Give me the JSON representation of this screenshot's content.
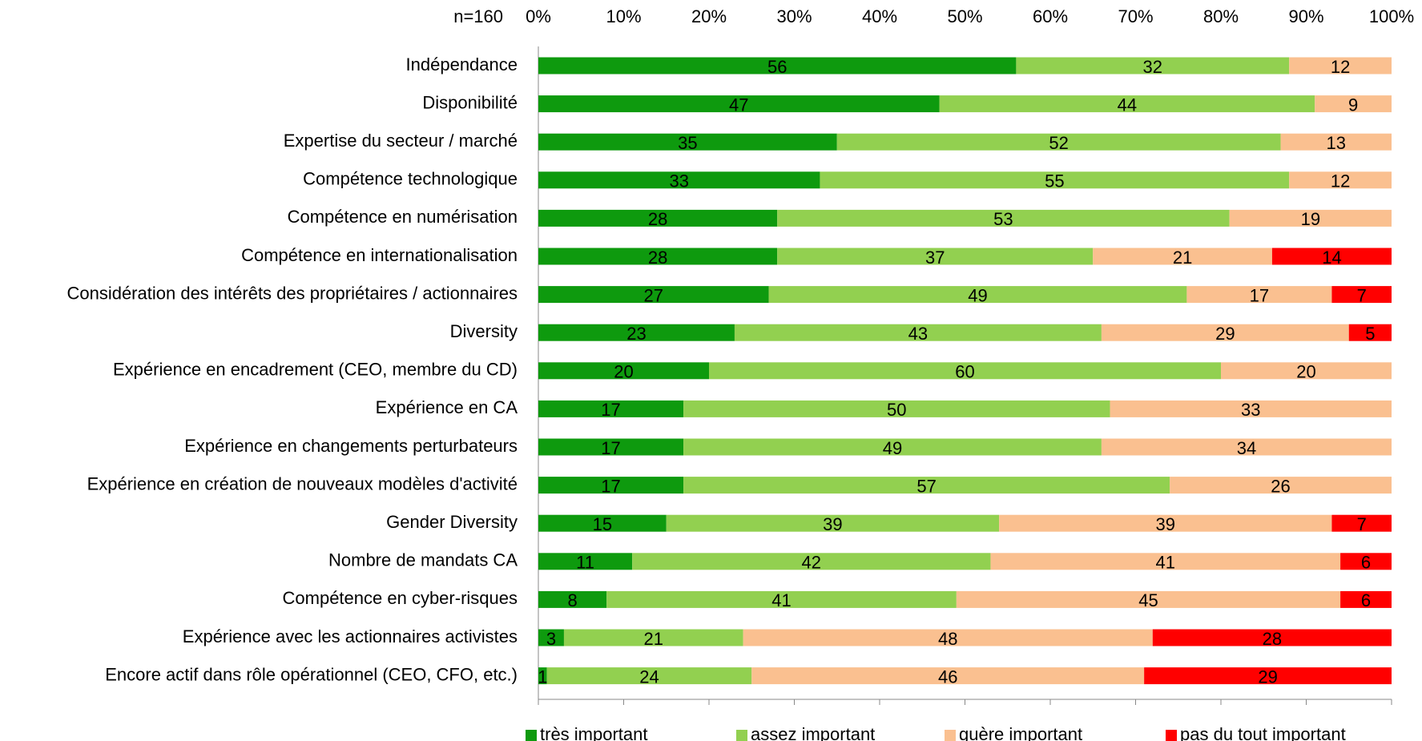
{
  "chart_data": {
    "type": "stacked_bar_horizontal",
    "note": "n=160",
    "categories": [
      "Indépendance",
      "Disponibilité",
      "Expertise du secteur / marché",
      "Compétence technologique",
      "Compétence en numérisation",
      "Compétence en internationalisation",
      "Considération des intérêts des propriétaires / actionnaires",
      "Diversity",
      "Expérience en encadrement (CEO, membre du CD)",
      "Expérience en CA",
      "Expérience en changements perturbateurs",
      "Expérience en création de nouveaux modèles d'activité",
      "Gender Diversity",
      "Nombre de mandats CA",
      "Compétence en cyber-risques",
      "Expérience avec les actionnaires activistes",
      "Encore actif dans rôle opérationnel (CEO, CFO, etc.)"
    ],
    "series": [
      {
        "name": "très important",
        "color": "#0e9a0e",
        "values": [
          56,
          47,
          35,
          33,
          28,
          28,
          27,
          23,
          20,
          17,
          17,
          17,
          15,
          11,
          8,
          3,
          1
        ]
      },
      {
        "name": "assez important",
        "color": "#92d050",
        "values": [
          32,
          44,
          52,
          55,
          53,
          37,
          49,
          43,
          60,
          50,
          49,
          57,
          39,
          42,
          41,
          21,
          24
        ]
      },
      {
        "name": "guère important",
        "color": "#fac090",
        "values": [
          12,
          9,
          13,
          12,
          19,
          21,
          17,
          29,
          20,
          33,
          34,
          26,
          39,
          41,
          45,
          48,
          46
        ]
      },
      {
        "name": "pas du tout important",
        "color": "#ff0000",
        "values": [
          null,
          null,
          null,
          null,
          null,
          14,
          7,
          5,
          null,
          null,
          null,
          null,
          7,
          6,
          6,
          28,
          29
        ]
      }
    ],
    "xlim": [
      0,
      100
    ],
    "xticks": [
      {
        "value": 0,
        "label": "0%"
      },
      {
        "value": 10,
        "label": "10%"
      },
      {
        "value": 20,
        "label": "20%"
      },
      {
        "value": 30,
        "label": "30%"
      },
      {
        "value": 40,
        "label": "40%"
      },
      {
        "value": 50,
        "label": "50%"
      },
      {
        "value": 60,
        "label": "60%"
      },
      {
        "value": 70,
        "label": "70%"
      },
      {
        "value": 80,
        "label": "80%"
      },
      {
        "value": 90,
        "label": "90%"
      },
      {
        "value": 100,
        "label": "100%"
      }
    ],
    "legend": "bottom"
  }
}
